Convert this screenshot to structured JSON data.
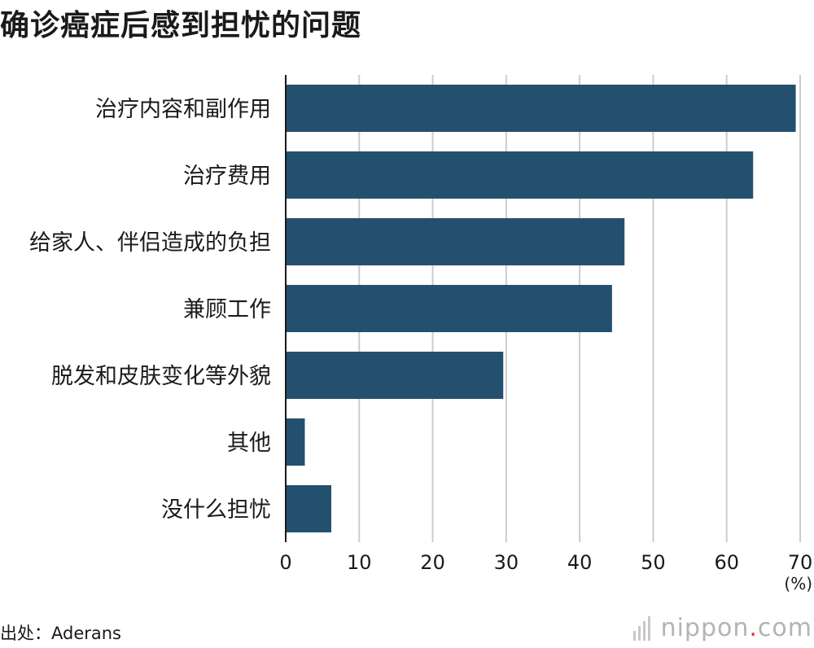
{
  "title": "确诊癌症后感到担忧的问题",
  "source": "出处：Aderans",
  "logo": {
    "name": "nippon",
    "dot": ".",
    "suffix": "com"
  },
  "chart_data": {
    "type": "bar",
    "orientation": "horizontal",
    "title": "确诊癌症后感到担忧的问题",
    "categories": [
      "治疗内容和副作用",
      "治疗费用",
      "给家人、伴侣造成的负担",
      "兼顾工作",
      "脱发和皮肤变化等外貌",
      "其他",
      "没什么担忧"
    ],
    "values": [
      69.4,
      63.6,
      46.1,
      44.4,
      29.6,
      2.6,
      6.2
    ],
    "xlim": [
      0,
      70
    ],
    "xticks": [
      0,
      10,
      20,
      30,
      40,
      50,
      60,
      70
    ],
    "xunit": "(%)",
    "grid": true,
    "bar_color": "#24506f",
    "grid_color": "#cccccc"
  }
}
